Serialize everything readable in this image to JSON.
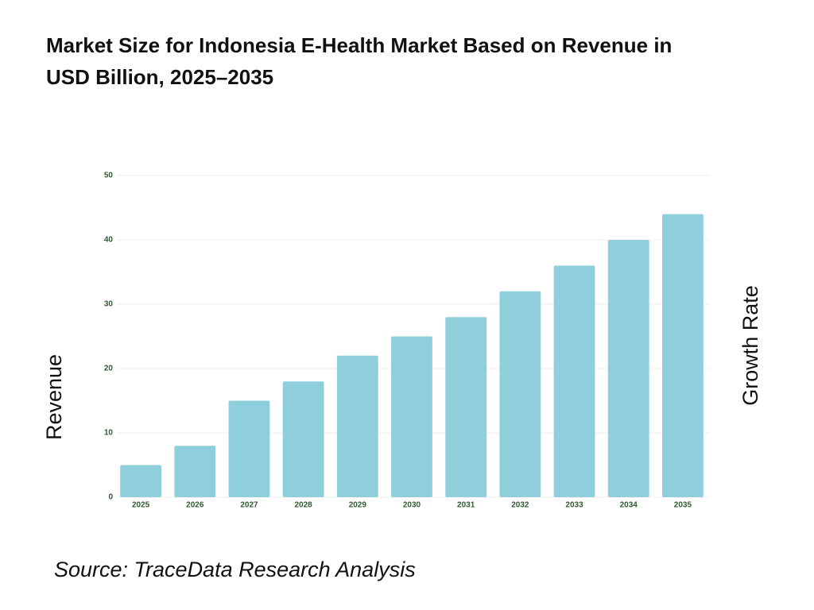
{
  "chart_data": {
    "type": "bar",
    "title": "Market Size for Indonesia E-Health Market Based on Revenue in USD Billion, 2025–2035",
    "ylabel": "Revenue",
    "y2label": "Growth Rate",
    "source": "Source: TraceData Research Analysis",
    "categories": [
      "2025",
      "2026",
      "2027",
      "2028",
      "2029",
      "2030",
      "2031",
      "2032",
      "2033",
      "2034",
      "2035"
    ],
    "values": [
      5,
      8,
      15,
      18,
      22,
      25,
      28,
      32,
      36,
      40,
      44
    ],
    "color": "#8ecfdb",
    "ylim": [
      0,
      50
    ],
    "yticks": [
      0,
      10,
      20,
      30,
      40,
      50
    ],
    "grid": true
  }
}
